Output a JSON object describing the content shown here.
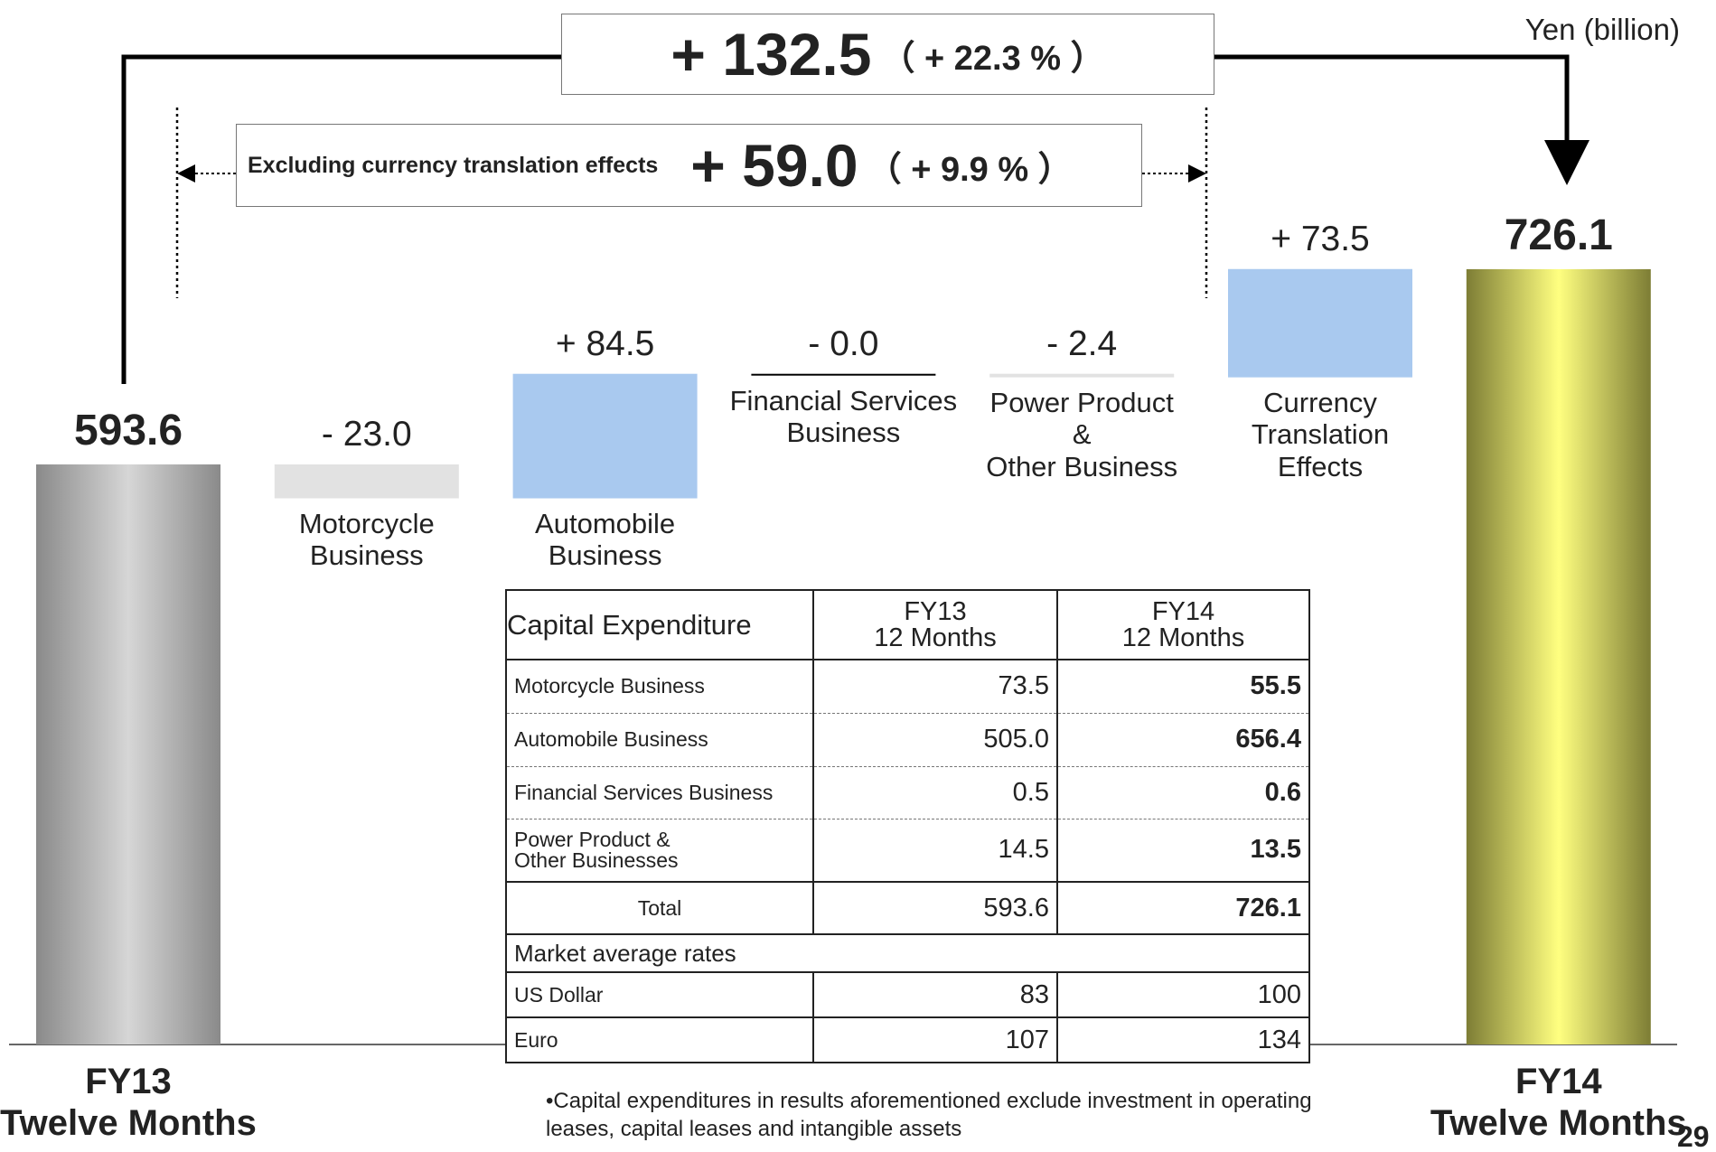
{
  "chart_data": {
    "type": "waterfall",
    "unit_label": "Yen (billion)",
    "categories": [
      "FY13\nTwelve Months",
      "Motorcycle\nBusiness",
      "Automobile\nBusiness",
      "Financial Services\nBusiness",
      "Power Product\n&\nOther Business",
      "Currency\nTranslation\nEffects",
      "FY14\nTwelve Months"
    ],
    "measure": [
      "total",
      "relative",
      "relative",
      "relative",
      "relative",
      "relative",
      "total"
    ],
    "values": [
      593.6,
      -23.0,
      84.5,
      0,
      -2.4,
      73.5,
      726.1
    ],
    "value_labels": [
      "593.6",
      "- 23.0",
      "+ 84.5",
      "- 0.0",
      "- 2.4",
      "+ 73.5",
      "726.1"
    ],
    "colors": [
      "#8a8a8a",
      "#e2e2e2",
      "#a9c9ef",
      "#000000",
      "#e2e2e2",
      "#a9c9ef",
      "#7d7d35"
    ],
    "total_highlights": [
      "#d6d6d6",
      "#ffff80"
    ],
    "ylim": [
      200,
      780
    ],
    "annotations": {
      "total_change": "+ 132.5",
      "total_change_pct": "（ + 22.3 % ）",
      "excl_label": "Excluding currency translation effects",
      "excl_change": "+ 59.0",
      "excl_change_pct": "（ + 9.9 % ）"
    }
  },
  "table": {
    "header": [
      "Capital Expenditure",
      "FY13\n12 Months",
      "FY14\n12 Months"
    ],
    "rows": [
      [
        "Motorcycle Business",
        "73.5",
        "55.5"
      ],
      [
        "Automobile Business",
        "505.0",
        "656.4"
      ],
      [
        "Financial Services Business",
        "0.5",
        "0.6"
      ],
      [
        "Power Product &\nOther Businesses",
        "14.5",
        "13.5"
      ],
      [
        "Total",
        "593.6",
        "726.1"
      ]
    ],
    "section": "Market average rates",
    "rate_rows": [
      [
        "US Dollar",
        "83",
        "100"
      ],
      [
        "Euro",
        "107",
        "134"
      ]
    ]
  },
  "footnote": "•Capital expenditures in results aforementioned exclude investment in operating leases, capital leases and intangible assets",
  "page_number": "29"
}
